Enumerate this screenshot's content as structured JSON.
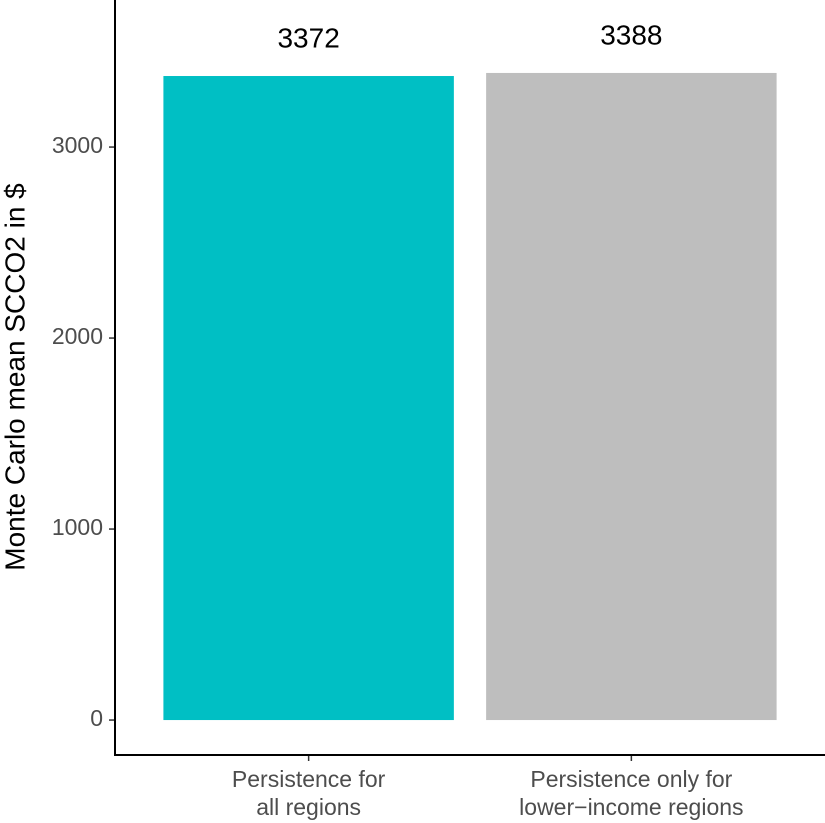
{
  "chart_data": {
    "type": "bar",
    "y_label": "Monte Carlo mean SCCO2 in $",
    "categories": [
      "Persistence for\nall regions",
      "Persistence only for\nlower−income regions"
    ],
    "values": [
      3372,
      3388
    ],
    "colors": [
      "#00BFC4",
      "#BEBEBE"
    ],
    "ylim": [
      -183,
      3770
    ],
    "yticks": [
      0,
      1000,
      2000,
      3000
    ],
    "grid": false
  }
}
